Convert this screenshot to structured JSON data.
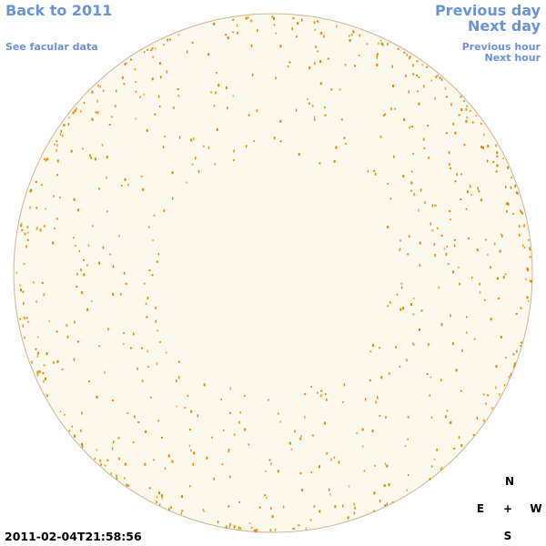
{
  "header": {
    "back_link": "Back to 2011",
    "facular_link": "See facular data",
    "previous_day": "Previous day",
    "next_day": "Next day",
    "previous_hour": "Previous hour",
    "next_hour": "Next hour"
  },
  "timestamp": "2011-02-04T21:58:56",
  "compass": {
    "north": "N",
    "east": "E",
    "center": "+",
    "west": "W",
    "south": "S"
  }
}
